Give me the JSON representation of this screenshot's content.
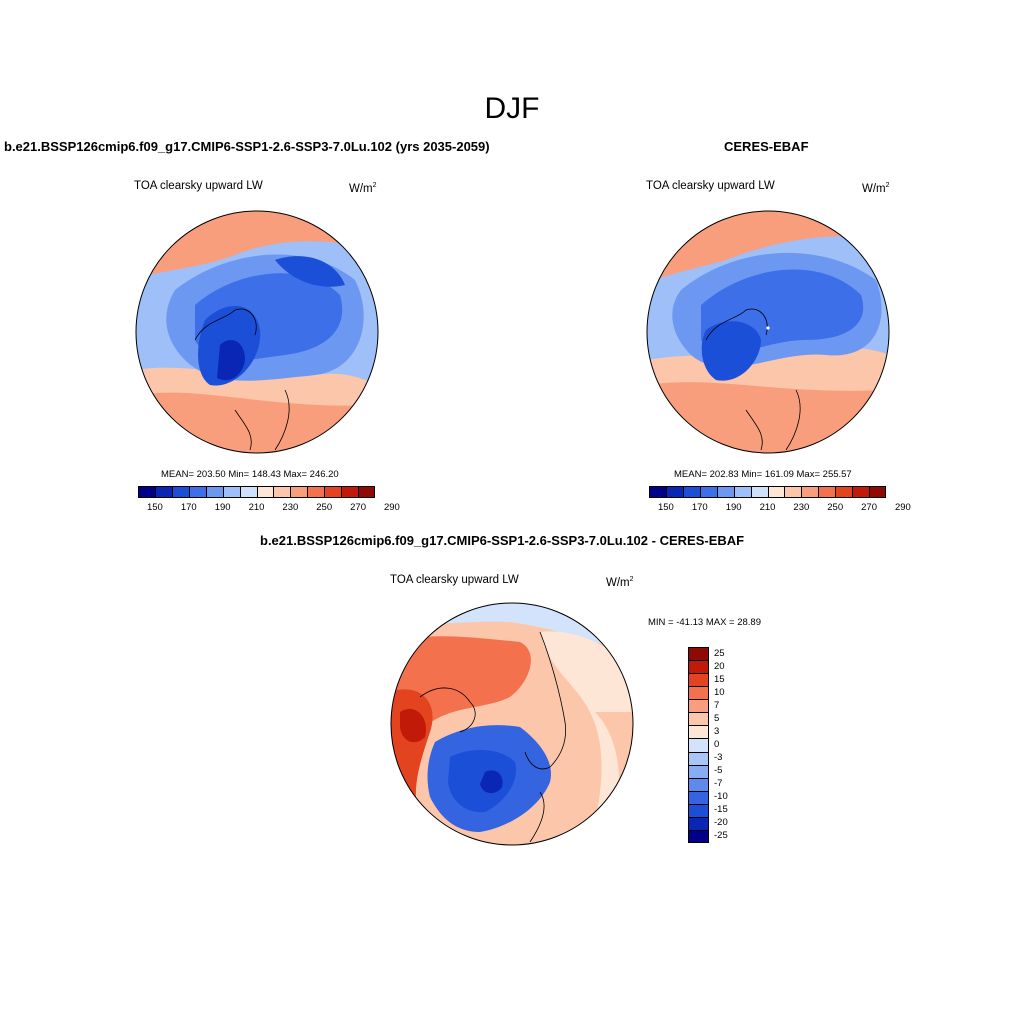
{
  "figure": {
    "season": "DJF"
  },
  "panels": [
    {
      "id": "model",
      "title": "b.e21.BSSP126cmip6.f09_g17.CMIP6-SSP1-2.6-SSP3-7.0Lu.102 (yrs 2035-2059)",
      "variable": "TOA clearsky upward LW",
      "units_base": "W/m",
      "units_exp": "2",
      "stats": "MEAN= 203.50  Min= 148.43  Max= 246.20",
      "colorbar_ticks": [
        "150",
        "170",
        "190",
        "210",
        "230",
        "250",
        "270",
        "290"
      ]
    },
    {
      "id": "obs",
      "title": "CERES-EBAF",
      "variable": "TOA clearsky upward LW",
      "units_base": "W/m",
      "units_exp": "2",
      "stats": "MEAN= 202.83  Min= 161.09  Max= 255.57",
      "colorbar_ticks": [
        "150",
        "170",
        "190",
        "210",
        "230",
        "250",
        "270",
        "290"
      ]
    },
    {
      "id": "diff",
      "title": "b.e21.BSSP126cmip6.f09_g17.CMIP6-SSP1-2.6-SSP3-7.0Lu.102 - CERES-EBAF",
      "variable": "TOA clearsky upward LW",
      "units_base": "W/m",
      "units_exp": "2",
      "stats": "MIN = -41.13 MAX =  28.89",
      "colorbar_labels": [
        "25",
        "20",
        "15",
        "10",
        "7",
        "5",
        "3",
        "0",
        "-3",
        "-5",
        "-7",
        "-10",
        "-15",
        "-20",
        "-25"
      ]
    }
  ],
  "colors": {
    "abs_scale": [
      "#00008b",
      "#0a26b4",
      "#1c4fd8",
      "#3c6fe8",
      "#6d98f2",
      "#9fbff8",
      "#cfe0fb",
      "#fde6d6",
      "#fbc6aa",
      "#f99e7c",
      "#f4714e",
      "#e3431f",
      "#c11a08",
      "#8f0a02"
    ],
    "diff_scale": [
      "#8f0a02",
      "#c11a08",
      "#e3431f",
      "#f4714e",
      "#f99e7c",
      "#fbc6aa",
      "#fde6d6",
      "#d2e3fb",
      "#a9c6f7",
      "#86acf3",
      "#5d8aec",
      "#3464e0",
      "#1c4fd8",
      "#0a26b4",
      "#00008b"
    ]
  }
}
